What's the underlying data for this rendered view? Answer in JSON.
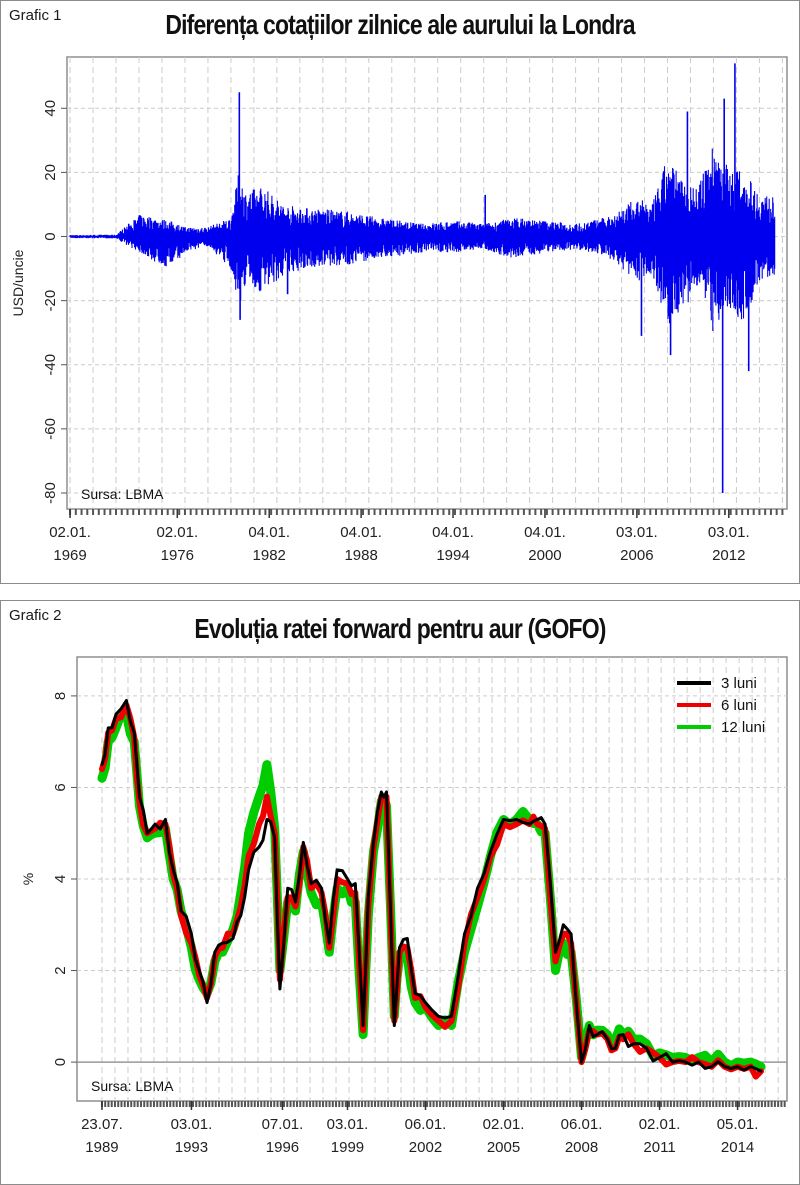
{
  "chart_data": [
    {
      "type": "line",
      "tag": "Grafic 1",
      "title": "Diferența cotațiilor zilnice ale aurului la Londra",
      "ylabel": "USD/uncie",
      "source": "Sursa: LBMA",
      "ylim": [
        -85,
        56
      ],
      "yticks": [
        40,
        20,
        0,
        -20,
        -40,
        -60,
        -80
      ],
      "xlim": [
        1968.8,
        2015.8
      ],
      "xticks": [
        {
          "x": 1969.0,
          "line1": "02.01.",
          "line2": "1969"
        },
        {
          "x": 1976.0,
          "line1": "02.01.",
          "line2": "1976"
        },
        {
          "x": 1982.0,
          "line1": "04.01.",
          "line2": "1982"
        },
        {
          "x": 1988.0,
          "line1": "04.01.",
          "line2": "1988"
        },
        {
          "x": 1994.0,
          "line1": "04.01.",
          "line2": "1994"
        },
        {
          "x": 2000.0,
          "line1": "04.01.",
          "line2": "2000"
        },
        {
          "x": 2006.0,
          "line1": "03.01.",
          "line2": "2006"
        },
        {
          "x": 2012.0,
          "line1": "03.01.",
          "line2": "2012"
        }
      ],
      "color": "#0000ee",
      "envelope": [
        {
          "x": 1969.0,
          "lo": -0.5,
          "hi": 0.5
        },
        {
          "x": 1972.0,
          "lo": -0.6,
          "hi": 0.6
        },
        {
          "x": 1972.8,
          "lo": -3,
          "hi": 4
        },
        {
          "x": 1973.6,
          "lo": -5,
          "hi": 7
        },
        {
          "x": 1974.5,
          "lo": -8,
          "hi": 6
        },
        {
          "x": 1975.5,
          "lo": -10,
          "hi": 5
        },
        {
          "x": 1976.5,
          "lo": -5,
          "hi": 3
        },
        {
          "x": 1978.0,
          "lo": -3,
          "hi": 3
        },
        {
          "x": 1979.5,
          "lo": -10,
          "hi": 6
        },
        {
          "x": 1980.0,
          "lo": -22,
          "hi": 20
        },
        {
          "x": 1980.5,
          "lo": -15,
          "hi": 14
        },
        {
          "x": 1981.5,
          "lo": -18,
          "hi": 16
        },
        {
          "x": 1983.0,
          "lo": -12,
          "hi": 10
        },
        {
          "x": 1984.5,
          "lo": -10,
          "hi": 9
        },
        {
          "x": 1987.0,
          "lo": -9,
          "hi": 8
        },
        {
          "x": 1989.0,
          "lo": -7,
          "hi": 6
        },
        {
          "x": 1992.0,
          "lo": -5,
          "hi": 4
        },
        {
          "x": 1994.0,
          "lo": -5,
          "hi": 5
        },
        {
          "x": 1996.0,
          "lo": -4,
          "hi": 4
        },
        {
          "x": 1998.0,
          "lo": -7,
          "hi": 6
        },
        {
          "x": 2000.0,
          "lo": -5,
          "hi": 5
        },
        {
          "x": 2002.0,
          "lo": -4,
          "hi": 4
        },
        {
          "x": 2004.0,
          "lo": -6,
          "hi": 6
        },
        {
          "x": 2006.0,
          "lo": -14,
          "hi": 12
        },
        {
          "x": 2007.0,
          "lo": -12,
          "hi": 10
        },
        {
          "x": 2008.0,
          "lo": -28,
          "hi": 25
        },
        {
          "x": 2009.0,
          "lo": -22,
          "hi": 18
        },
        {
          "x": 2010.0,
          "lo": -18,
          "hi": 15
        },
        {
          "x": 2011.0,
          "lo": -30,
          "hi": 30
        },
        {
          "x": 2012.0,
          "lo": -22,
          "hi": 22
        },
        {
          "x": 2013.0,
          "lo": -28,
          "hi": 20
        },
        {
          "x": 2014.0,
          "lo": -14,
          "hi": 14
        },
        {
          "x": 2015.0,
          "lo": -12,
          "hi": 12
        }
      ],
      "spikes": [
        {
          "x": 1980.05,
          "y": 45
        },
        {
          "x": 1980.1,
          "y": -26
        },
        {
          "x": 1983.2,
          "y": -18
        },
        {
          "x": 1996.1,
          "y": 13
        },
        {
          "x": 2006.3,
          "y": -31
        },
        {
          "x": 2008.2,
          "y": -37
        },
        {
          "x": 2009.3,
          "y": 39
        },
        {
          "x": 2011.7,
          "y": 43
        },
        {
          "x": 2011.6,
          "y": -80
        },
        {
          "x": 2012.4,
          "y": 54
        },
        {
          "x": 2013.3,
          "y": -42
        }
      ]
    },
    {
      "type": "line",
      "tag": "Grafic 2",
      "title": "Evoluția ratei forward pentru aur (GOFO)",
      "ylabel": "%",
      "source": "Sursa: LBMA",
      "ylim": [
        -0.85,
        8.85
      ],
      "yticks": [
        8,
        6,
        4,
        2,
        0
      ],
      "xlim": [
        1988.6,
        2015.9
      ],
      "xticks": [
        {
          "x": 1989.56,
          "line1": "23.07.",
          "line2": "1989"
        },
        {
          "x": 1993.0,
          "line1": "03.01.",
          "line2": "1993"
        },
        {
          "x": 1996.5,
          "line1": "07.01.",
          "line2": "1996"
        },
        {
          "x": 1999.0,
          "line1": "03.01.",
          "line2": "1999"
        },
        {
          "x": 2002.0,
          "line1": "06.01.",
          "line2": "2002"
        },
        {
          "x": 2005.0,
          "line1": "02.01.",
          "line2": "2005"
        },
        {
          "x": 2008.0,
          "line1": "06.01.",
          "line2": "2008"
        },
        {
          "x": 2011.0,
          "line1": "02.01.",
          "line2": "2011"
        },
        {
          "x": 2014.0,
          "line1": "05.01.",
          "line2": "2014"
        }
      ],
      "legend": "top-right",
      "x": [
        1989.56,
        1989.8,
        1990.1,
        1990.5,
        1990.8,
        1991.0,
        1991.3,
        1991.6,
        1992.0,
        1992.3,
        1992.6,
        1993.0,
        1993.3,
        1993.6,
        1993.9,
        1994.2,
        1994.6,
        1994.9,
        1995.2,
        1995.6,
        1995.9,
        1996.2,
        1996.4,
        1996.7,
        1997.0,
        1997.3,
        1997.6,
        1998.0,
        1998.3,
        1998.6,
        1999.0,
        1999.3,
        1999.6,
        1999.8,
        2000.0,
        2000.3,
        2000.5,
        2000.8,
        2001.0,
        2001.3,
        2001.6,
        2002.0,
        2002.5,
        2003.0,
        2003.5,
        2004.0,
        2004.5,
        2005.0,
        2005.5,
        2006.0,
        2006.3,
        2006.6,
        2007.0,
        2007.3,
        2007.6,
        2008.0,
        2008.3,
        2008.6,
        2009.0,
        2009.3,
        2009.6,
        2010.0,
        2010.5,
        2011.0,
        2011.5,
        2012.0,
        2012.5,
        2013.0,
        2013.5,
        2014.0,
        2014.5,
        2014.9
      ],
      "series": [
        {
          "name": "3 luni",
          "color": "#000000",
          "values": [
            6.5,
            7.3,
            7.6,
            7.9,
            7.2,
            5.8,
            5.0,
            5.2,
            5.3,
            4.2,
            3.3,
            2.8,
            2.0,
            1.3,
            2.4,
            2.6,
            2.7,
            3.2,
            4.2,
            4.7,
            5.3,
            4.9,
            1.6,
            3.8,
            3.5,
            4.8,
            3.9,
            3.8,
            2.6,
            4.2,
            4.0,
            3.9,
            0.8,
            3.6,
            4.8,
            5.9,
            5.9,
            0.8,
            2.5,
            2.7,
            1.5,
            1.3,
            1.0,
            1.0,
            2.8,
            3.8,
            4.6,
            5.3,
            5.3,
            5.2,
            5.3,
            5.2,
            2.4,
            3.0,
            2.8,
            0.0,
            0.8,
            0.6,
            0.5,
            0.3,
            0.6,
            0.4,
            0.3,
            0.1,
            0.0,
            0.0,
            0.0,
            -0.1,
            -0.1,
            -0.1,
            -0.1,
            -0.2
          ]
        },
        {
          "name": "6 luni",
          "color": "#ee0000",
          "values": [
            6.4,
            7.2,
            7.5,
            7.8,
            7.1,
            5.7,
            5.0,
            5.1,
            5.2,
            4.1,
            3.2,
            2.6,
            1.9,
            1.4,
            2.3,
            2.5,
            2.8,
            3.4,
            4.5,
            5.2,
            5.8,
            5.0,
            1.8,
            3.6,
            3.4,
            4.7,
            3.8,
            3.7,
            2.5,
            4.0,
            3.9,
            3.7,
            0.7,
            3.4,
            4.7,
            5.8,
            5.8,
            0.9,
            2.4,
            2.5,
            1.4,
            1.2,
            0.9,
            0.9,
            2.6,
            3.6,
            4.5,
            5.2,
            5.2,
            5.2,
            5.2,
            5.1,
            2.2,
            2.8,
            2.6,
            0.0,
            0.7,
            0.6,
            0.5,
            0.3,
            0.5,
            0.4,
            0.3,
            0.1,
            0.0,
            0.0,
            0.0,
            -0.1,
            -0.1,
            -0.1,
            -0.1,
            -0.2
          ]
        },
        {
          "name": "12 luni",
          "color": "#00cc00",
          "values": [
            6.2,
            7.0,
            7.3,
            7.6,
            7.0,
            5.6,
            4.9,
            5.0,
            5.1,
            4.0,
            3.3,
            2.5,
            1.8,
            1.5,
            2.2,
            2.4,
            2.9,
            3.7,
            5.0,
            5.8,
            6.5,
            5.1,
            2.0,
            3.5,
            3.3,
            4.6,
            3.7,
            3.5,
            2.4,
            3.8,
            3.8,
            3.5,
            0.6,
            3.2,
            4.6,
            5.7,
            5.6,
            1.0,
            2.3,
            2.3,
            1.3,
            1.2,
            0.8,
            0.8,
            2.4,
            3.4,
            4.5,
            5.3,
            5.3,
            5.3,
            5.2,
            5.0,
            2.0,
            2.6,
            2.4,
            0.1,
            0.8,
            0.7,
            0.6,
            0.5,
            0.6,
            0.5,
            0.4,
            0.2,
            0.1,
            0.1,
            0.1,
            0.0,
            0.0,
            0.0,
            0.0,
            -0.1
          ]
        }
      ]
    }
  ]
}
